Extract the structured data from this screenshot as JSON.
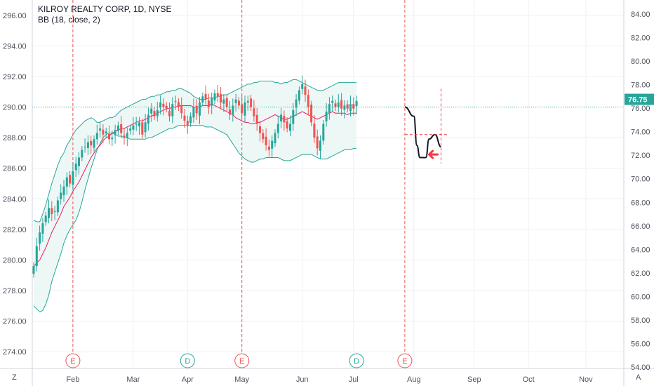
{
  "legend": {
    "title": "KILROY REALTY CORP, 1D, NYSE",
    "indicator": "BB (18, close, 2)"
  },
  "corner": {
    "left": "Z",
    "right": "A"
  },
  "chart_data": {
    "type": "candlestick",
    "title": "KILROY REALTY CORP, 1D, NYSE",
    "indicator": "BB (18, close, 2)",
    "left_axis": {
      "ticks": [
        "274.00",
        "276.00",
        "278.00",
        "280.00",
        "282.00",
        "284.00",
        "286.00",
        "288.00",
        "290.00",
        "292.00",
        "294.00",
        "296.00"
      ],
      "values": [
        274,
        276,
        278,
        280,
        282,
        284,
        286,
        288,
        290,
        292,
        294,
        296
      ],
      "range": [
        273,
        297
      ]
    },
    "right_axis": {
      "ticks": [
        "54.00",
        "56.00",
        "58.00",
        "60.00",
        "62.00",
        "64.00",
        "66.00",
        "68.00",
        "70.00",
        "72.00",
        "74.00",
        "76.00",
        "78.00",
        "80.00",
        "82.00",
        "84.00"
      ],
      "values": [
        54,
        56,
        58,
        60,
        62,
        64,
        66,
        68,
        70,
        72,
        74,
        76,
        78,
        80,
        82,
        84
      ],
      "last_price": "76.75",
      "last_price_value": 76.75,
      "last_price_color": "#26a69a"
    },
    "x_axis": {
      "labels": [
        "Feb",
        "Mar",
        "Apr",
        "May",
        "Jun",
        "Jul",
        "Aug",
        "Sep",
        "Oct",
        "Nov"
      ],
      "label_bar_index": [
        13,
        33,
        51,
        69,
        89,
        106,
        126,
        146,
        164,
        183
      ]
    },
    "events": [
      {
        "label": "E",
        "bar_index": 13,
        "color": "#ef5350"
      },
      {
        "label": "D",
        "bar_index": 51,
        "color": "#26a69a"
      },
      {
        "label": "E",
        "bar_index": 69,
        "color": "#ef5350"
      },
      {
        "label": "D",
        "bar_index": 107,
        "color": "#26a69a"
      },
      {
        "label": "E",
        "bar_index": 123,
        "color": "#ef5350"
      }
    ],
    "closes": [
      279.6,
      280.9,
      281.8,
      282.4,
      282.9,
      283.4,
      283.0,
      283.2,
      283.9,
      284.4,
      284.8,
      285.4,
      285.0,
      285.8,
      286.3,
      286.7,
      287.2,
      287.4,
      287.7,
      287.5,
      287.9,
      288.3,
      288.6,
      288.2,
      288.4,
      287.9,
      288.0,
      288.5,
      288.8,
      288.3,
      288.0,
      288.3,
      288.6,
      288.8,
      288.9,
      289.0,
      288.2,
      289.0,
      289.5,
      289.9,
      289.4,
      289.8,
      290.3,
      290.0,
      289.9,
      289.4,
      290.2,
      290.4,
      290.0,
      289.6,
      289.1,
      288.8,
      289.4,
      290.0,
      289.6,
      290.3,
      290.7,
      290.5,
      290.0,
      290.6,
      290.9,
      290.7,
      290.3,
      290.5,
      290.0,
      289.5,
      290.1,
      290.5,
      290.1,
      289.6,
      290.3,
      290.4,
      290.0,
      289.4,
      288.9,
      288.3,
      287.9,
      287.5,
      287.2,
      287.8,
      288.3,
      288.9,
      289.5,
      289.0,
      288.6,
      288.9,
      289.8,
      290.5,
      291.1,
      291.5,
      290.8,
      290.0,
      289.0,
      288.0,
      287.3,
      287.8,
      288.9,
      289.7,
      290.2,
      290.4,
      290.0,
      290.3,
      289.9,
      290.1,
      289.9,
      290.2,
      289.9,
      290.4
    ],
    "bb_mid": [
      279.6,
      279.8,
      280.0,
      280.4,
      280.8,
      281.3,
      281.8,
      282.2,
      282.6,
      283.0,
      283.5,
      283.8,
      284.1,
      284.5,
      284.8,
      285.1,
      285.5,
      285.9,
      286.3,
      286.7,
      287.0,
      287.3,
      287.5,
      287.8,
      288.0,
      288.1,
      288.3,
      288.4,
      288.5,
      288.6,
      288.6,
      288.7,
      288.8,
      288.9,
      289.0,
      289.1,
      289.1,
      289.2,
      289.3,
      289.4,
      289.5,
      289.6,
      289.7,
      289.8,
      289.9,
      289.9,
      290.0,
      290.0,
      290.1,
      290.1,
      290.1,
      290.1,
      290.1,
      290.0,
      290.0,
      290.0,
      290.1,
      290.1,
      290.1,
      290.2,
      290.1,
      290.0,
      289.9,
      289.8,
      289.7,
      289.6,
      289.5,
      289.3,
      289.2,
      289.1,
      289.0,
      289.0,
      288.9,
      288.9,
      289.0,
      289.0,
      289.1,
      289.2,
      289.3,
      289.4,
      289.5,
      289.4,
      289.3,
      289.2,
      289.2,
      289.3,
      289.4,
      289.5,
      289.6,
      289.7,
      289.6,
      289.5,
      289.4,
      289.3,
      289.2,
      289.3,
      289.4,
      289.5,
      289.6,
      289.7,
      289.6,
      289.6,
      289.6,
      289.6,
      289.5,
      289.6,
      289.6,
      289.6
    ],
    "bb_upper": [
      282.6,
      282.5,
      282.5,
      283.0,
      283.6,
      284.3,
      285.0,
      285.6,
      286.2,
      286.7,
      287.0,
      287.5,
      287.8,
      288.2,
      288.5,
      288.7,
      288.9,
      289.1,
      289.2,
      289.3,
      289.2,
      289.0,
      289.0,
      289.1,
      289.2,
      289.3,
      289.3,
      289.4,
      289.6,
      289.8,
      289.9,
      290.0,
      290.1,
      290.2,
      290.3,
      290.4,
      290.5,
      290.5,
      290.6,
      290.7,
      290.7,
      290.8,
      290.8,
      290.9,
      291.0,
      291.0,
      291.1,
      291.1,
      291.2,
      291.2,
      291.1,
      291.0,
      290.9,
      290.7,
      290.6,
      290.5,
      290.5,
      290.5,
      290.6,
      290.6,
      290.6,
      290.7,
      290.7,
      290.8,
      290.8,
      290.9,
      291.0,
      291.1,
      291.2,
      291.3,
      291.4,
      291.5,
      291.5,
      291.6,
      291.6,
      291.7,
      291.7,
      291.7,
      291.7,
      291.7,
      291.6,
      291.6,
      291.5,
      291.6,
      291.6,
      291.7,
      291.8,
      291.8,
      291.7,
      291.6,
      291.5,
      291.4,
      291.3,
      291.2,
      291.1,
      291.1,
      291.1,
      291.2,
      291.3,
      291.4,
      291.5,
      291.6,
      291.6,
      291.6,
      291.6,
      291.6,
      291.6,
      291.6
    ],
    "bb_lower": [
      277.0,
      276.8,
      276.6,
      276.7,
      277.1,
      277.7,
      278.6,
      279.2,
      279.8,
      280.4,
      281.1,
      281.6,
      282.0,
      282.3,
      282.6,
      283.1,
      283.8,
      284.6,
      285.3,
      286.0,
      286.6,
      287.2,
      287.6,
      288.0,
      288.2,
      288.3,
      288.3,
      288.2,
      288.1,
      288.1,
      288.0,
      288.0,
      287.9,
      287.9,
      287.9,
      287.9,
      287.9,
      287.9,
      288.0,
      288.0,
      288.1,
      288.2,
      288.3,
      288.4,
      288.5,
      288.6,
      288.6,
      288.7,
      288.8,
      288.8,
      288.8,
      288.8,
      288.8,
      288.8,
      288.8,
      288.8,
      288.8,
      288.7,
      288.7,
      288.7,
      288.6,
      288.5,
      288.4,
      288.3,
      288.2,
      287.9,
      287.6,
      287.3,
      287.0,
      286.8,
      286.6,
      286.5,
      286.4,
      286.4,
      286.5,
      286.6,
      286.6,
      286.7,
      286.7,
      286.7,
      286.7,
      286.7,
      286.6,
      286.5,
      286.5,
      286.5,
      286.6,
      286.7,
      286.8,
      286.9,
      286.9,
      286.9,
      286.9,
      286.8,
      286.7,
      286.6,
      286.6,
      286.6,
      286.7,
      286.8,
      286.9,
      287.0,
      287.1,
      287.2,
      287.2,
      287.2,
      287.3,
      287.3
    ],
    "last_price_line": 290.0,
    "projection": {
      "points": [
        [
          123,
          290.0
        ],
        [
          126,
          289.4
        ],
        [
          127,
          287.5
        ],
        [
          128,
          286.7
        ],
        [
          130,
          286.7
        ],
        [
          131,
          287.9
        ],
        [
          133,
          288.2
        ],
        [
          135,
          287.4
        ]
      ],
      "dashed_h_level": 288.2,
      "dashed_v_bar": 135,
      "dashed_v_range": [
        291.2,
        286.3
      ],
      "arrow_at": [
        132,
        286.9
      ]
    }
  },
  "colors": {
    "up": "#26a69a",
    "down": "#ef5350",
    "bb_band": "#26a69a",
    "bb_mid": "#e91e63",
    "band_fill": "#e8f5f4",
    "event_line": "#ef5350",
    "price_line": "#26a69a",
    "grid": "#eef0f3",
    "projection": "#131722",
    "arrow": "#f23645"
  }
}
